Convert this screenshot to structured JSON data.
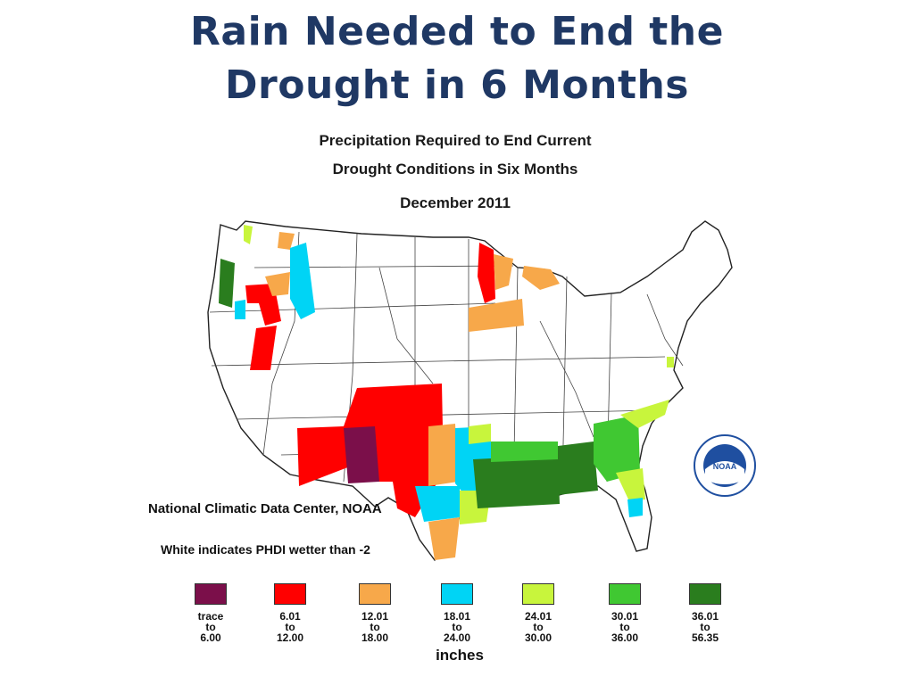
{
  "slide": {
    "title_line1": "Rain Needed to End the",
    "title_line2": "Drought in 6 Months"
  },
  "map": {
    "title_line1": "Precipitation Required to End Current",
    "title_line2": "Drought Conditions in Six Months",
    "date": "December 2011",
    "source": "National Climatic Data Center, NOAA",
    "note": "White indicates PHDI wetter than -2",
    "units": "inches",
    "logo_text": "NOAA"
  },
  "legend": [
    {
      "color": "#7b0f4a",
      "line1": "trace",
      "line2": "to",
      "line3": "6.00"
    },
    {
      "color": "#ff0000",
      "line1": "6.01",
      "line2": "to",
      "line3": "12.00"
    },
    {
      "color": "#f7a84a",
      "line1": "12.01",
      "line2": "to",
      "line3": "18.00"
    },
    {
      "color": "#00d4f5",
      "line1": "18.01",
      "line2": "to",
      "line3": "24.00"
    },
    {
      "color": "#c8f53c",
      "line1": "24.01",
      "line2": "to",
      "line3": "30.00"
    },
    {
      "color": "#40c832",
      "line1": "30.01",
      "line2": "to",
      "line3": "36.00"
    },
    {
      "color": "#2a7d1e",
      "line1": "36.01",
      "line2": "to",
      "line3": "56.35"
    }
  ]
}
